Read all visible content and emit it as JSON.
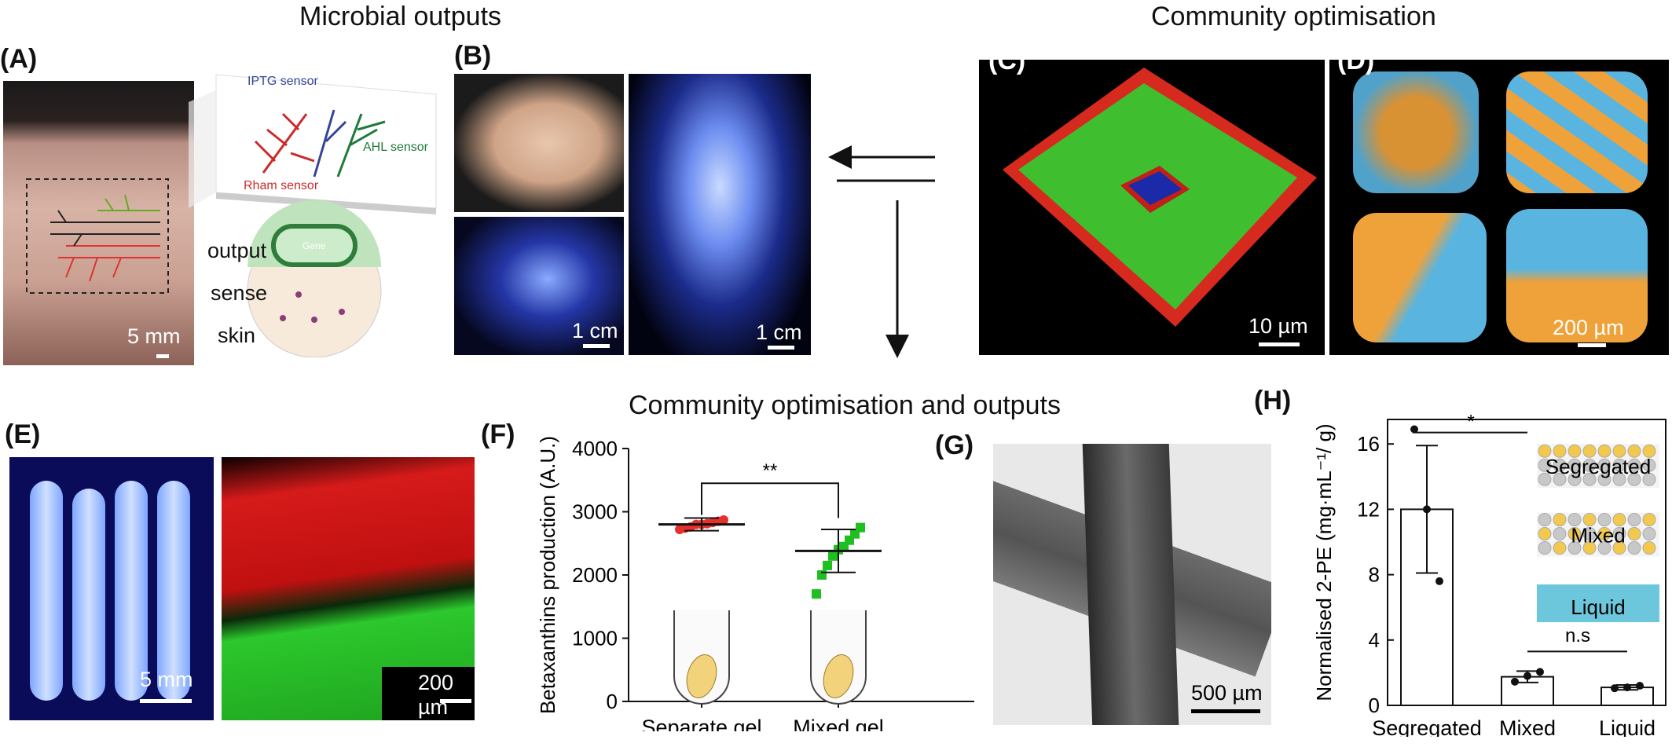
{
  "titles": {
    "microbial_outputs": "Microbial outputs",
    "community_optimisation": "Community optimisation",
    "community_optimisation_outputs": "Community optimisation and outputs"
  },
  "panels": {
    "a": "(A)",
    "b": "(B)",
    "c": "(C)",
    "d": "(D)",
    "e": "(E)",
    "f": "(F)",
    "g": "(G)",
    "h": "(H)"
  },
  "panel_a": {
    "scale": "5 mm",
    "iptg": "IPTG sensor",
    "ahl": "AHL sensor",
    "rham": "Rham sensor",
    "gene": "Gene",
    "output": "output",
    "sense": "sense",
    "skin": "skin"
  },
  "panel_b": {
    "scale1": "1 cm",
    "scale2": "1 cm"
  },
  "panel_c": {
    "scale": "10 µm"
  },
  "panel_d": {
    "scale": "200 µm"
  },
  "panel_e": {
    "scale1": "5 mm",
    "scale2": "200 µm"
  },
  "panel_g": {
    "scale": "500 µm"
  },
  "colors": {
    "red": "#e8302a",
    "green": "#2bb52b",
    "blue_glow": "#5a8dff",
    "orange": "#f0a23a",
    "cyan": "#5ab4e0"
  },
  "chart_data": [
    {
      "type": "scatter",
      "panel": "F",
      "ylabel": "Betaxanthins production (A.U.)",
      "categories": [
        "Separate gel",
        "Mixed gel"
      ],
      "yticks": [
        "0",
        "1000",
        "2000",
        "3000",
        "4000"
      ],
      "ylim": [
        0,
        4000
      ],
      "series": [
        {
          "category": "Separate gel",
          "color": "#e8302a",
          "marker": "circle",
          "mean": 2800,
          "sd": 100,
          "points": [
            2720,
            2740,
            2760,
            2800,
            2800,
            2810,
            2830,
            2850,
            2870
          ]
        },
        {
          "category": "Mixed gel",
          "color": "#1fbf1f",
          "marker": "square",
          "mean": 2380,
          "sd": 340,
          "points": [
            1700,
            2000,
            2150,
            2300,
            2400,
            2450,
            2550,
            2650,
            2750
          ]
        }
      ],
      "annotation": "**"
    },
    {
      "type": "bar",
      "panel": "H",
      "ylabel": "Normalised 2-PE  (mg·mL⁻¹/ g)",
      "categories": [
        "Segregated",
        "Mixed",
        "Liquid"
      ],
      "yticks": [
        "0",
        "4",
        "8",
        "12",
        "16"
      ],
      "ylim": [
        0,
        17.5
      ],
      "values": [
        12.0,
        1.75,
        1.1
      ],
      "errors": [
        3.9,
        0.35,
        0.15
      ],
      "points": [
        [
          16.9,
          12.0,
          7.6
        ],
        [
          1.45,
          1.8,
          2.05
        ],
        [
          1.05,
          1.1,
          1.2
        ]
      ],
      "annotations": [
        "*",
        "n.s"
      ],
      "legend": [
        "Segregated",
        "Mixed",
        "Liquid"
      ]
    }
  ]
}
